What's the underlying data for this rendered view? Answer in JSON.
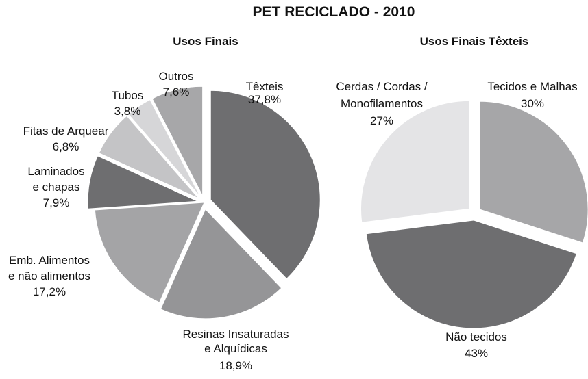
{
  "title": "PET RECICLADO - 2010",
  "chart_data": [
    {
      "type": "pie",
      "title": "Usos Finais",
      "slices": [
        {
          "label_lines": [
            "Têxteis",
            "37,8%"
          ],
          "value": 37.8,
          "color": "#6e6e70",
          "exploded": true
        },
        {
          "label_lines": [
            "Resinas Insaturadas",
            "e Alquídicas",
            "18,9%"
          ],
          "value": 18.9,
          "color": "#959597",
          "exploded": true
        },
        {
          "label_lines": [
            "Emb. Alimentos",
            "e não alimentos",
            "17,2%"
          ],
          "value": 17.2,
          "color": "#a4a4a6",
          "exploded": false
        },
        {
          "label_lines": [
            "Laminados",
            "e chapas",
            "7,9%"
          ],
          "value": 7.9,
          "color": "#6e6e70",
          "exploded": true
        },
        {
          "label_lines": [
            "Fitas de Arquear",
            "6,8%"
          ],
          "value": 6.8,
          "color": "#c4c4c6",
          "exploded": true
        },
        {
          "label_lines": [
            "Tubos",
            "3,8%"
          ],
          "value": 3.8,
          "color": "#d6d6d8",
          "exploded": true
        },
        {
          "label_lines": [
            "Outros",
            "7,6%"
          ],
          "value": 7.6,
          "color": "#a7a7a9",
          "exploded": true
        }
      ]
    },
    {
      "type": "pie",
      "title": "Usos Finais Têxteis",
      "slices": [
        {
          "label_lines": [
            "Tecidos e Malhas",
            "30%"
          ],
          "value": 30,
          "color": "#a6a6a8",
          "exploded": true
        },
        {
          "label_lines": [
            "Não tecidos",
            "43%"
          ],
          "value": 43,
          "color": "#6e6e70",
          "exploded": true
        },
        {
          "label_lines": [
            "Cerdas / Cordas /",
            "Monofilamentos",
            "27%"
          ],
          "value": 27,
          "color": "#e4e4e6",
          "exploded": true
        }
      ]
    }
  ]
}
